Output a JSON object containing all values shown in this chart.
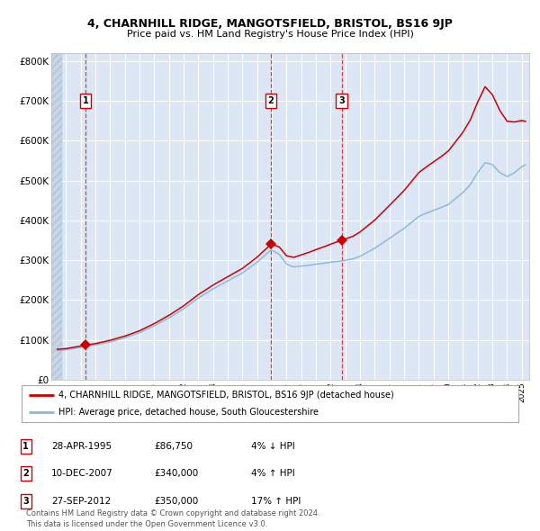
{
  "title": "4, CHARNHILL RIDGE, MANGOTSFIELD, BRISTOL, BS16 9JP",
  "subtitle": "Price paid vs. HM Land Registry's House Price Index (HPI)",
  "ylim": [
    0,
    820000
  ],
  "xlim_start": 1993.0,
  "xlim_end": 2025.5,
  "yticks": [
    0,
    100000,
    200000,
    300000,
    400000,
    500000,
    600000,
    700000,
    800000
  ],
  "ytick_labels": [
    "£0",
    "£100K",
    "£200K",
    "£300K",
    "£400K",
    "£500K",
    "£600K",
    "£700K",
    "£800K"
  ],
  "xtick_years": [
    1993,
    1994,
    1995,
    1996,
    1997,
    1998,
    1999,
    2000,
    2001,
    2002,
    2003,
    2004,
    2005,
    2006,
    2007,
    2008,
    2009,
    2010,
    2011,
    2012,
    2013,
    2014,
    2015,
    2016,
    2017,
    2018,
    2019,
    2020,
    2021,
    2022,
    2023,
    2024,
    2025
  ],
  "sale_dates": [
    1995.32,
    2007.94,
    2012.74
  ],
  "sale_prices": [
    86750,
    340000,
    350000
  ],
  "sale_labels": [
    "1",
    "2",
    "3"
  ],
  "legend_red": "4, CHARNHILL RIDGE, MANGOTSFIELD, BRISTOL, BS16 9JP (detached house)",
  "legend_blue": "HPI: Average price, detached house, South Gloucestershire",
  "table_data": [
    [
      "1",
      "28-APR-1995",
      "£86,750",
      "4% ↓ HPI"
    ],
    [
      "2",
      "10-DEC-2007",
      "£340,000",
      "4% ↑ HPI"
    ],
    [
      "3",
      "27-SEP-2012",
      "£350,000",
      "17% ↑ HPI"
    ]
  ],
  "footer": "Contains HM Land Registry data © Crown copyright and database right 2024.\nThis data is licensed under the Open Government Licence v3.0.",
  "bg_color": "#dce6f5",
  "grid_color": "#ffffff",
  "red_color": "#cc0000",
  "blue_color": "#88b8d8",
  "dashed_line_color": "#cc4444"
}
